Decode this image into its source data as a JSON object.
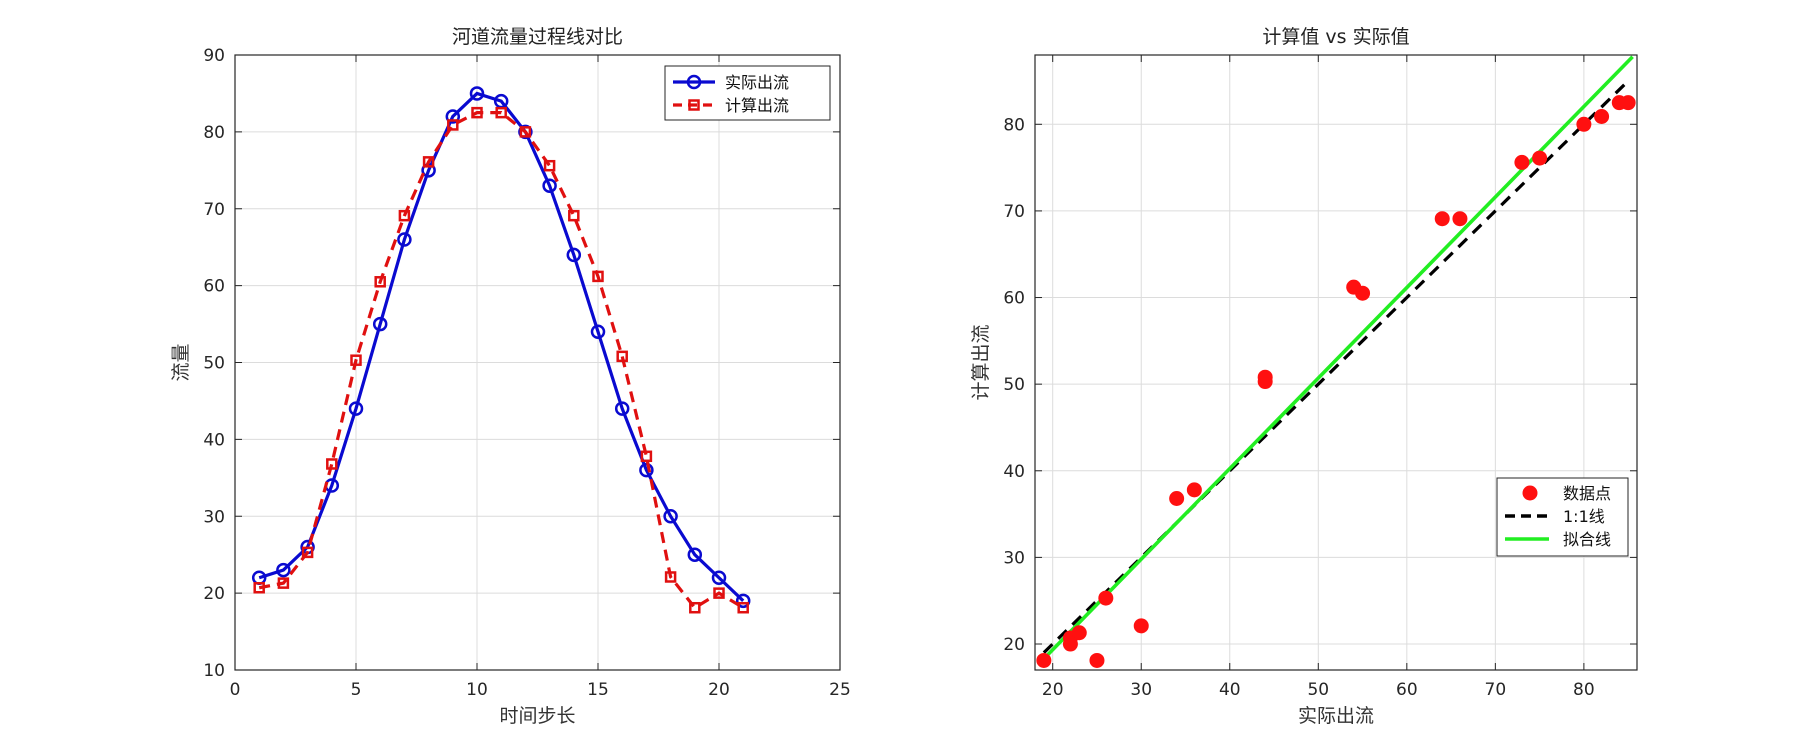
{
  "chart_data": [
    {
      "type": "line",
      "title": "河道流量过程线对比",
      "xlabel": "时间步长",
      "ylabel": "流量",
      "xlim": [
        0,
        25
      ],
      "ylim": [
        10,
        90
      ],
      "xticks": [
        0,
        5,
        10,
        15,
        20,
        25
      ],
      "yticks": [
        10,
        20,
        30,
        40,
        50,
        60,
        70,
        80,
        90
      ],
      "grid": true,
      "legend_position": "top-right",
      "series": [
        {
          "name": "实际出流",
          "color": "#0a0ad0",
          "style": "solid",
          "marker": "circle",
          "x": [
            1,
            2,
            3,
            4,
            5,
            6,
            7,
            8,
            9,
            10,
            11,
            12,
            13,
            14,
            15,
            16,
            17,
            18,
            19,
            20,
            21
          ],
          "y": [
            22,
            23,
            26,
            34,
            44,
            55,
            66,
            75,
            82,
            85,
            84,
            80,
            73,
            64,
            54,
            44,
            36,
            30,
            25,
            22,
            19
          ]
        },
        {
          "name": "计算出流",
          "color": "#e01010",
          "style": "dashed",
          "marker": "square",
          "x": [
            1,
            2,
            3,
            4,
            5,
            6,
            7,
            8,
            9,
            10,
            11,
            12,
            13,
            14,
            15,
            16,
            17,
            18,
            19,
            20,
            21
          ],
          "y": [
            20.7,
            21.3,
            25.3,
            36.8,
            50.3,
            60.5,
            69.1,
            76.1,
            80.9,
            82.5,
            82.5,
            80.0,
            75.6,
            69.1,
            61.2,
            50.8,
            37.8,
            22.1,
            18.1,
            20.0,
            18.1
          ]
        }
      ]
    },
    {
      "type": "scatter",
      "title": "计算值 vs 实际值",
      "xlabel": "实际出流",
      "ylabel": "计算出流",
      "xlim": [
        18,
        86
      ],
      "ylim": [
        17,
        88
      ],
      "xticks": [
        20,
        30,
        40,
        50,
        60,
        70,
        80
      ],
      "yticks": [
        20,
        30,
        40,
        50,
        60,
        70,
        80
      ],
      "grid": true,
      "legend_position": "bottom-right",
      "points": {
        "name": "数据点",
        "color": "#ff1010",
        "x": [
          22,
          23,
          26,
          34,
          44,
          55,
          66,
          75,
          82,
          85,
          84,
          80,
          73,
          64,
          54,
          44,
          36,
          30,
          25,
          22,
          19
        ],
        "y": [
          20.7,
          21.3,
          25.3,
          36.8,
          50.3,
          60.5,
          69.1,
          76.1,
          80.9,
          82.5,
          82.5,
          80.0,
          75.6,
          69.1,
          61.2,
          50.8,
          37.8,
          22.1,
          18.1,
          20.0,
          18.1
        ]
      },
      "lines": [
        {
          "name": "1:1线",
          "color": "#000000",
          "style": "dashed",
          "x": [
            19,
            85
          ],
          "y": [
            19,
            85
          ]
        },
        {
          "name": "拟合线",
          "color": "#22ee22",
          "style": "solid",
          "x": [
            19,
            85.5
          ],
          "y": [
            18.3,
            87.8
          ]
        }
      ]
    }
  ]
}
